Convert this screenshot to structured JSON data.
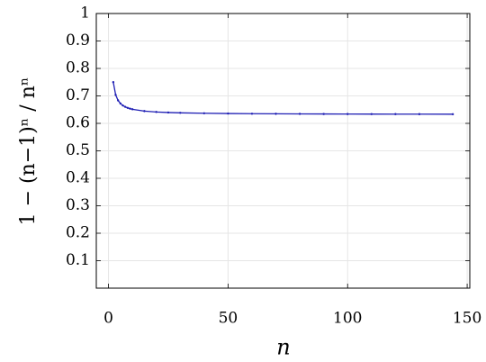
{
  "chart_data": {
    "type": "line",
    "xlabel": "n",
    "ylabel": "1 − (n−1)ⁿ / nⁿ",
    "x": [
      2,
      3,
      4,
      5,
      6,
      7,
      8,
      9,
      10,
      15,
      20,
      25,
      30,
      40,
      50,
      60,
      70,
      80,
      90,
      100,
      110,
      120,
      130,
      144
    ],
    "series": [
      {
        "color": "#1f1fb4",
        "values": [
          0.75,
          0.7037,
          0.6836,
          0.6723,
          0.6651,
          0.6601,
          0.6564,
          0.6536,
          0.6513,
          0.6447,
          0.6415,
          0.6396,
          0.6384,
          0.6368,
          0.6358,
          0.6352,
          0.6348,
          0.6345,
          0.6342,
          0.634,
          0.6338,
          0.6337,
          0.6336,
          0.6334
        ]
      }
    ],
    "xlim": [
      -5.1,
      151.1
    ],
    "ylim": [
      0,
      1
    ],
    "xticks": [
      0,
      50,
      100,
      150
    ],
    "yticks": [
      0.1,
      0.2,
      0.3,
      0.4,
      0.5,
      0.6,
      0.7,
      0.8,
      0.9,
      1
    ],
    "grid": true
  }
}
